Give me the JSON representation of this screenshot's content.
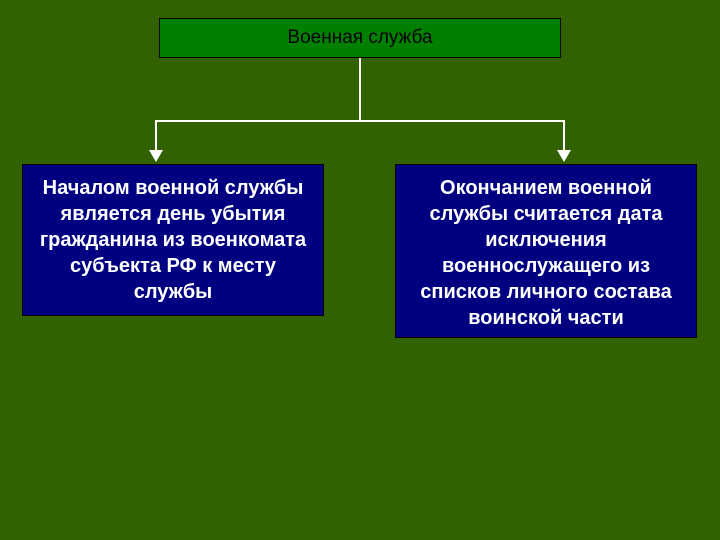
{
  "background_color": "#326200",
  "title": {
    "text": "Военная служба",
    "box_color": "#008000",
    "border_color": "#000000",
    "text_color": "#000000",
    "fontsize": 19
  },
  "connector": {
    "line_color": "#ffffff",
    "line_width": 2,
    "arrow_color": "#ffffff"
  },
  "boxes": {
    "left": {
      "text": "Началом военной службы является день убытия гражданина из военкомата субъекта РФ к месту службы",
      "bg_color": "#000080",
      "text_color": "#ffffff",
      "fontsize": 20,
      "font_weight": "bold"
    },
    "right": {
      "text": "Окончанием военной службы считается дата исключения военнослужащего из списков личного состава воинской части",
      "bg_color": "#000080",
      "text_color": "#ffffff",
      "fontsize": 20,
      "font_weight": "bold"
    }
  },
  "diagram_type": "tree"
}
